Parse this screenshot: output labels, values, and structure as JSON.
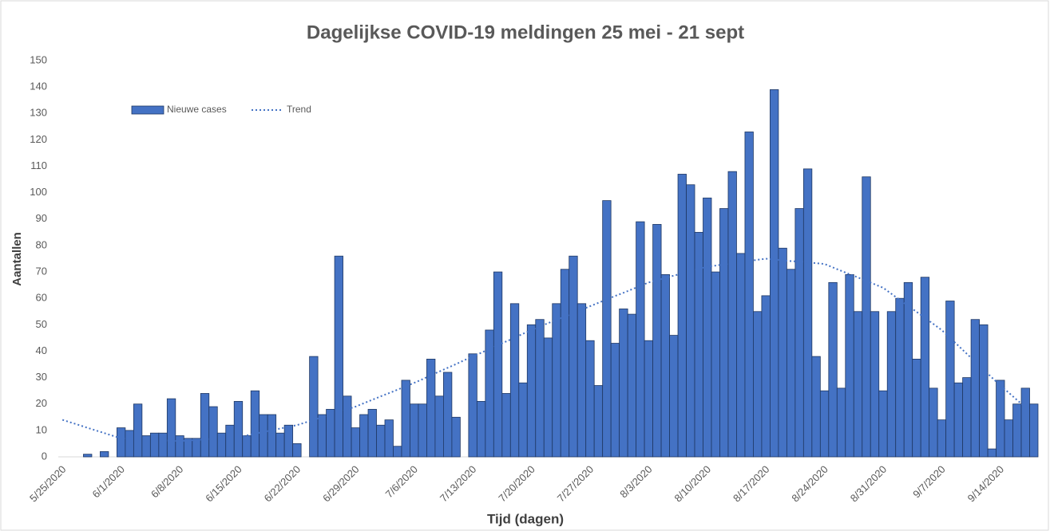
{
  "chart_data": {
    "type": "bar",
    "title": "Dagelijkse COVID-19 meldingen 25 mei - 21 sept",
    "x_label": "Tijd (dagen)",
    "y_label": "Aantallen",
    "categories": [
      "5/25/2020",
      null,
      null,
      null,
      null,
      null,
      null,
      "6/1/2020",
      null,
      null,
      null,
      null,
      null,
      null,
      "6/8/2020",
      null,
      null,
      null,
      null,
      null,
      null,
      "6/15/2020",
      null,
      null,
      null,
      null,
      null,
      null,
      "6/22/2020",
      null,
      null,
      null,
      null,
      null,
      null,
      "6/29/2020",
      null,
      null,
      null,
      null,
      null,
      null,
      "7/6/2020",
      null,
      null,
      null,
      null,
      null,
      null,
      "7/13/2020",
      null,
      null,
      null,
      null,
      null,
      null,
      "7/20/2020",
      null,
      null,
      null,
      null,
      null,
      null,
      "7/27/2020",
      null,
      null,
      null,
      null,
      null,
      null,
      "8/3/2020",
      null,
      null,
      null,
      null,
      null,
      null,
      "8/10/2020",
      null,
      null,
      null,
      null,
      null,
      null,
      "8/17/2020",
      null,
      null,
      null,
      null,
      null,
      null,
      "8/24/2020",
      null,
      null,
      null,
      null,
      null,
      null,
      "8/31/2020",
      null,
      null,
      null,
      null,
      null,
      null,
      "9/7/2020",
      null,
      null,
      null,
      null,
      null,
      null,
      "9/14/2020",
      null,
      null,
      null,
      null
    ],
    "series": [
      {
        "name": "Nieuwe cases",
        "type": "bar",
        "color": "#4472c4",
        "values": [
          0,
          0,
          0,
          1,
          0,
          2,
          0,
          11,
          10,
          20,
          8,
          9,
          9,
          22,
          8,
          7,
          7,
          24,
          19,
          9,
          12,
          21,
          8,
          25,
          16,
          16,
          9,
          12,
          5,
          0,
          38,
          16,
          18,
          76,
          23,
          11,
          16,
          18,
          12,
          14,
          4,
          29,
          20,
          20,
          37,
          23,
          32,
          15,
          0,
          39,
          21,
          48,
          70,
          24,
          58,
          28,
          50,
          52,
          45,
          58,
          71,
          76,
          58,
          44,
          27,
          97,
          43,
          56,
          54,
          89,
          44,
          88,
          69,
          46,
          107,
          103,
          85,
          98,
          70,
          94,
          108,
          77,
          123,
          55,
          61,
          139,
          79,
          71,
          94,
          109,
          38,
          25,
          66,
          26,
          69,
          55,
          106,
          55,
          25,
          55,
          60,
          66,
          37,
          68,
          26,
          14,
          59,
          28,
          30,
          52,
          50,
          3,
          29,
          14,
          20,
          26,
          20
        ]
      },
      {
        "name": "Trend",
        "type": "line",
        "color": "#4472c4",
        "values": [
          14,
          13,
          12,
          11,
          10,
          9,
          8,
          7,
          6.9,
          6.7,
          6.6,
          6.4,
          6.3,
          6.1,
          6,
          6.2,
          6.4,
          6.6,
          6.9,
          7.1,
          7.3,
          7.5,
          8.1,
          8.8,
          9.4,
          10.1,
          10.7,
          11.4,
          12,
          13,
          14,
          15,
          16,
          17,
          18,
          19,
          20.3,
          21.6,
          22.9,
          24.1,
          25.4,
          26.7,
          28,
          29.4,
          30.9,
          32.3,
          33.7,
          35.1,
          36.6,
          38,
          39.4,
          40.9,
          42.3,
          43.7,
          45.1,
          46.6,
          48,
          49.3,
          50.6,
          51.9,
          53.1,
          54.4,
          55.7,
          57,
          58.3,
          59.6,
          60.9,
          62.1,
          63.4,
          64.7,
          66,
          66.9,
          67.7,
          68.6,
          69.4,
          70.3,
          71.1,
          72,
          72.4,
          72.9,
          73.3,
          73.7,
          74.1,
          74.6,
          75,
          74.7,
          74.4,
          74.1,
          73.9,
          73.6,
          73.3,
          73,
          71.7,
          70.4,
          69.1,
          67.9,
          66.6,
          65.3,
          64,
          61.7,
          59.4,
          57.1,
          54.9,
          52.6,
          50.3,
          48,
          45,
          42,
          39,
          36,
          33,
          30,
          27,
          24.3,
          21.5,
          18.8,
          16
        ]
      }
    ],
    "ylim": [
      0,
      150
    ],
    "yticks": [
      0,
      10,
      20,
      30,
      40,
      50,
      60,
      70,
      80,
      90,
      100,
      110,
      120,
      130,
      140,
      150
    ],
    "grid": false,
    "legend": "top-left"
  }
}
